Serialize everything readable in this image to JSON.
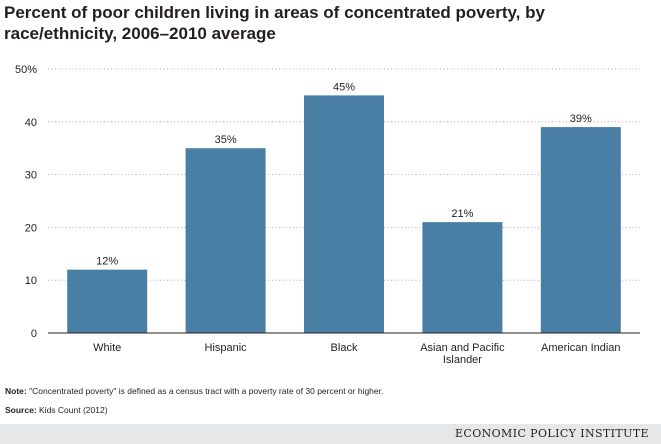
{
  "header": {
    "title": "Percent of poor children living in areas of concentrated poverty, by race/ethnicity, 2006–2010 average"
  },
  "chart_data": {
    "type": "bar",
    "title": "Percent of poor children living in areas of concentrated poverty, by race/ethnicity, 2006–2010 average",
    "categories": [
      "White",
      "Hispanic",
      "Black",
      "Asian and Pacific Islander",
      "American Indian"
    ],
    "values": [
      12,
      35,
      45,
      21,
      39
    ],
    "data_labels": [
      "12%",
      "35%",
      "45%",
      "21%",
      "39%"
    ],
    "y_ticks": [
      "0",
      "10",
      "20",
      "30",
      "40",
      "50%"
    ],
    "ylim": [
      0,
      50
    ],
    "grid": "dotted horizontal",
    "bar_color": "#4a7fa5",
    "xlabel": "",
    "ylabel": ""
  },
  "footer": {
    "note_label": "Note:",
    "note_text": " \"Concentrated poverty\" is defined as a census tract with a poverty rate of 30 percent or higher.",
    "source_label": "Source:",
    "source_text": " Kids Count (2012)",
    "brand": "ECONOMIC POLICY INSTITUTE"
  }
}
